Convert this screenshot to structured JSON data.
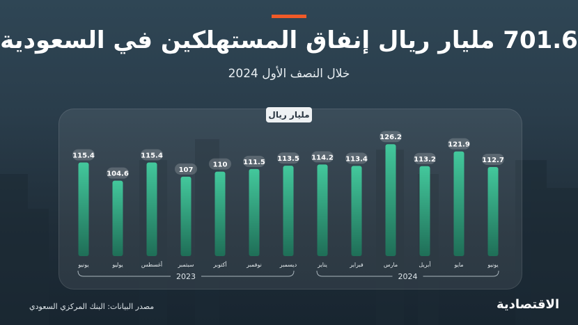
{
  "header": {
    "title": "701.6 مليار ريال إنفاق المستهلكين في السعودية",
    "subtitle": "خلال النصف الأول 2024",
    "accent_color": "#f05a28"
  },
  "chart_data": {
    "type": "bar",
    "unit_label": "مليار ريال",
    "categories": [
      "يونيو",
      "يوليو",
      "أغسطس",
      "سبتمبر",
      "أكتوبر",
      "نوفمبر",
      "ديسمبر",
      "يناير",
      "فبراير",
      "مارس",
      "أبريل",
      "مايو",
      "يونيو"
    ],
    "values": [
      115.4,
      104.6,
      115.4,
      107,
      110,
      111.5,
      113.5,
      114.2,
      113.4,
      126.2,
      113.2,
      121.9,
      112.7
    ],
    "year_groups": [
      {
        "label": "2023",
        "from": 0,
        "to": 6
      },
      {
        "label": "2024",
        "from": 7,
        "to": 12
      }
    ],
    "ylim": [
      0,
      130
    ],
    "bar_color_top": "#43c89c",
    "bar_color_bottom": "#1f6e57",
    "grid": false
  },
  "footer": {
    "source": "مصدر البيانات: البنك المركزي السعودي",
    "logo": "الاقتصادية"
  }
}
